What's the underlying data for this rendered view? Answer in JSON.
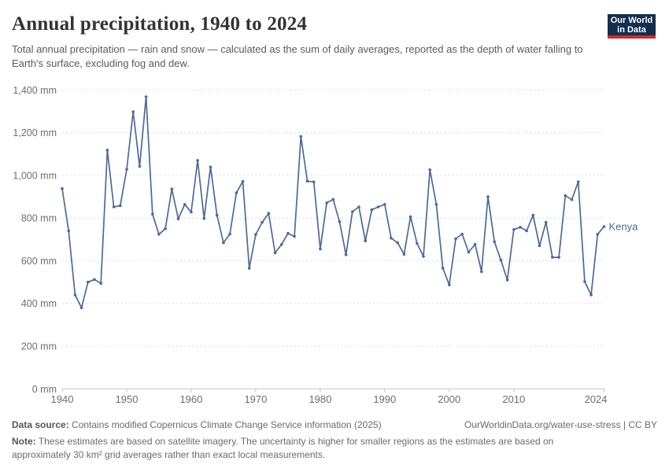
{
  "header": {
    "title": "Annual precipitation, 1940 to 2024",
    "logo": {
      "line1": "Our World",
      "line2": "in Data"
    }
  },
  "subtitle": "Total annual precipitation — rain and snow — calculated as the sum of daily averages, reported as the depth of water falling to Earth's surface, excluding fog and dew.",
  "chart_data": {
    "type": "line",
    "title": "Annual precipitation, 1940 to 2024",
    "xlabel": "",
    "ylabel": "",
    "unit": "mm",
    "xlim": [
      1940,
      2024
    ],
    "ylim": [
      0,
      1400
    ],
    "grid": "dashed horizontal gridlines",
    "legend_position": "label at end of line",
    "xticks": [
      {
        "value": 1940,
        "label": "1940"
      },
      {
        "value": 1950,
        "label": "1950"
      },
      {
        "value": 1960,
        "label": "1960"
      },
      {
        "value": 1970,
        "label": "1970"
      },
      {
        "value": 1980,
        "label": "1980"
      },
      {
        "value": 1990,
        "label": "1990"
      },
      {
        "value": 2000,
        "label": "2000"
      },
      {
        "value": 2010,
        "label": "2010"
      },
      {
        "value": 2024,
        "label": "2024"
      }
    ],
    "yticks": [
      {
        "value": 0,
        "label": "0 mm"
      },
      {
        "value": 200,
        "label": "200 mm"
      },
      {
        "value": 400,
        "label": "400 mm"
      },
      {
        "value": 600,
        "label": "600 mm"
      },
      {
        "value": 800,
        "label": "800 mm"
      },
      {
        "value": 1000,
        "label": "1,000 mm"
      },
      {
        "value": 1200,
        "label": "1,200 mm"
      },
      {
        "value": 1400,
        "label": "1,400 mm"
      }
    ],
    "series": [
      {
        "name": "Kenya",
        "color": "#4c6a9c",
        "x": [
          1940,
          1941,
          1942,
          1943,
          1944,
          1945,
          1946,
          1947,
          1948,
          1949,
          1950,
          1951,
          1952,
          1953,
          1954,
          1955,
          1956,
          1957,
          1958,
          1959,
          1960,
          1961,
          1962,
          1963,
          1964,
          1965,
          1966,
          1967,
          1968,
          1969,
          1970,
          1971,
          1972,
          1973,
          1974,
          1975,
          1976,
          1977,
          1978,
          1979,
          1980,
          1981,
          1982,
          1983,
          1984,
          1985,
          1986,
          1987,
          1988,
          1989,
          1990,
          1991,
          1992,
          1993,
          1994,
          1995,
          1996,
          1997,
          1998,
          1999,
          2000,
          2001,
          2002,
          2003,
          2004,
          2005,
          2006,
          2007,
          2008,
          2009,
          2010,
          2011,
          2012,
          2013,
          2014,
          2015,
          2016,
          2017,
          2018,
          2019,
          2020,
          2021,
          2022,
          2023,
          2024
        ],
        "values": [
          938,
          740,
          440,
          380,
          500,
          512,
          494,
          1118,
          852,
          858,
          1028,
          1298,
          1042,
          1368,
          818,
          724,
          750,
          936,
          796,
          864,
          828,
          1070,
          798,
          1039,
          813,
          684,
          725,
          918,
          971,
          565,
          723,
          780,
          822,
          637,
          676,
          728,
          714,
          1182,
          973,
          969,
          655,
          871,
          887,
          783,
          628,
          830,
          852,
          693,
          839,
          852,
          864,
          706,
          684,
          630,
          806,
          682,
          620,
          1026,
          864,
          566,
          487,
          703,
          725,
          640,
          677,
          549,
          900,
          689,
          603,
          510,
          746,
          757,
          740,
          813,
          670,
          780,
          616,
          616,
          905,
          886,
          970,
          502,
          440,
          724,
          760
        ]
      }
    ]
  },
  "footer": {
    "source_label": "Data source:",
    "source_text": " Contains modified Copernicus Climate Change Service information (2025)",
    "link": "OurWorldinData.org/water-use-stress | CC BY",
    "note_label": "Note:",
    "note_text": " These estimates are based on satellite imagery. The uncertainty is higher for smaller regions as the estimates are based on approximately 30 km² grid averages rather than exact local measurements."
  }
}
